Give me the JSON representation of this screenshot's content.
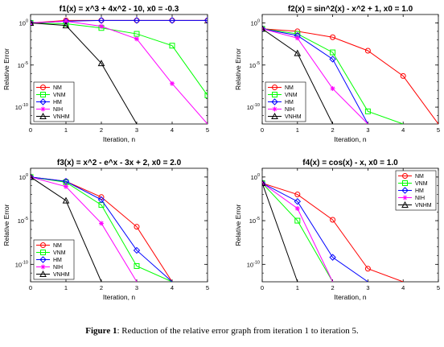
{
  "caption": {
    "label": "Figure 1",
    "text": ": Reduction of the relative error graph from iteration 1 to iteration 5."
  },
  "chart_data": [
    {
      "type": "line",
      "title": "f1(x) = x^3 + 4x^2 - 10,  x0 = -0.3",
      "xlabel": "Iteration, n",
      "ylabel": "Relative Error",
      "xlim": [
        0,
        5
      ],
      "ylim_exponent": [
        -12,
        1
      ],
      "y_scale": "log",
      "x_ticks": [
        0,
        1,
        2,
        3,
        4,
        5
      ],
      "y_ticks": [
        {
          "exp": 0,
          "label": "10",
          "sup": "0"
        },
        {
          "exp": -5,
          "label": "10",
          "sup": "-5"
        },
        {
          "exp": -10,
          "label": "10",
          "sup": "-10"
        }
      ],
      "legend": "bottom-left",
      "series": [
        {
          "name": "NM",
          "color": "#ff0000",
          "marker": "circle",
          "x": [
            0,
            1,
            2,
            3,
            4,
            5
          ],
          "log10_y": [
            0.0,
            0.3,
            0.3,
            0.3,
            0.3,
            0.3
          ]
        },
        {
          "name": "VNM",
          "color": "#00ff00",
          "marker": "square",
          "x": [
            0,
            1,
            2,
            3,
            4,
            5
          ],
          "log10_y": [
            0.0,
            -0.1,
            -0.6,
            -1.3,
            -2.7,
            -8.6
          ]
        },
        {
          "name": "HM",
          "color": "#0000ff",
          "marker": "diamond",
          "x": [
            0,
            1,
            2,
            3,
            4,
            5
          ],
          "log10_y": [
            0.0,
            0.2,
            0.3,
            0.3,
            0.3,
            0.3
          ]
        },
        {
          "name": "NIH",
          "color": "#ff00ff",
          "marker": "star",
          "x": [
            0,
            1,
            2,
            3,
            4,
            5
          ],
          "log10_y": [
            0.0,
            0.2,
            -0.4,
            -1.9,
            -7.2,
            -12
          ]
        },
        {
          "name": "VNHM",
          "color": "#000000",
          "marker": "triangle",
          "x": [
            0,
            1,
            2,
            3
          ],
          "log10_y": [
            0.0,
            -0.3,
            -4.8,
            -12
          ]
        }
      ]
    },
    {
      "type": "line",
      "title": "f2(x) = sin^2(x) - x^2 + 1,  x0 = 1.0",
      "xlabel": "Iteration, n",
      "ylabel": "Relative Error",
      "xlim": [
        0,
        5
      ],
      "ylim_exponent": [
        -12,
        1
      ],
      "y_scale": "log",
      "x_ticks": [
        0,
        1,
        2,
        3,
        4,
        5
      ],
      "y_ticks": [
        {
          "exp": 0,
          "label": "10",
          "sup": "0"
        },
        {
          "exp": -5,
          "label": "10",
          "sup": "-5"
        },
        {
          "exp": -10,
          "label": "10",
          "sup": "-10"
        }
      ],
      "legend": "bottom-left",
      "series": [
        {
          "name": "NM",
          "color": "#ff0000",
          "marker": "circle",
          "x": [
            0,
            1,
            2,
            3,
            4,
            5
          ],
          "log10_y": [
            -0.7,
            -1.0,
            -1.7,
            -3.3,
            -6.3,
            -12
          ]
        },
        {
          "name": "VNM",
          "color": "#00ff00",
          "marker": "square",
          "x": [
            0,
            1,
            2,
            3,
            4
          ],
          "log10_y": [
            -0.7,
            -1.3,
            -3.5,
            -10.5,
            -12
          ]
        },
        {
          "name": "HM",
          "color": "#0000ff",
          "marker": "diamond",
          "x": [
            0,
            1,
            2,
            3
          ],
          "log10_y": [
            -0.7,
            -1.5,
            -4.3,
            -12
          ]
        },
        {
          "name": "NIH",
          "color": "#ff00ff",
          "marker": "star",
          "x": [
            0,
            1,
            2,
            3
          ],
          "log10_y": [
            -0.7,
            -1.8,
            -7.8,
            -12
          ]
        },
        {
          "name": "VNHM",
          "color": "#000000",
          "marker": "triangle",
          "x": [
            0,
            1,
            2
          ],
          "log10_y": [
            -0.7,
            -3.6,
            -12
          ]
        }
      ]
    },
    {
      "type": "line",
      "title": "f3(x) = x^2 - e^x - 3x + 2,  x0 = 2.0",
      "xlabel": "Iteration, n",
      "ylabel": "Relative Error",
      "xlim": [
        0,
        5
      ],
      "ylim_exponent": [
        -12,
        1
      ],
      "y_scale": "log",
      "x_ticks": [
        0,
        1,
        2,
        3,
        4,
        5
      ],
      "y_ticks": [
        {
          "exp": 0,
          "label": "10",
          "sup": "0"
        },
        {
          "exp": -5,
          "label": "10",
          "sup": "-5"
        },
        {
          "exp": -10,
          "label": "10",
          "sup": "-10"
        }
      ],
      "legend": "bottom-left",
      "series": [
        {
          "name": "NM",
          "color": "#ff0000",
          "marker": "circle",
          "x": [
            0,
            1,
            2,
            3,
            4
          ],
          "log10_y": [
            0.0,
            -0.5,
            -2.3,
            -5.7,
            -12
          ]
        },
        {
          "name": "VNM",
          "color": "#00ff00",
          "marker": "square",
          "x": [
            0,
            1,
            2,
            3,
            4
          ],
          "log10_y": [
            0.0,
            -0.6,
            -3.2,
            -10.2,
            -12
          ]
        },
        {
          "name": "HM",
          "color": "#0000ff",
          "marker": "diamond",
          "x": [
            0,
            1,
            2,
            3,
            4
          ],
          "log10_y": [
            0.0,
            -0.5,
            -2.6,
            -8.4,
            -12
          ]
        },
        {
          "name": "NIH",
          "color": "#ff00ff",
          "marker": "star",
          "x": [
            0,
            1,
            2,
            3
          ],
          "log10_y": [
            0.0,
            -1.1,
            -5.3,
            -12
          ]
        },
        {
          "name": "VNHM",
          "color": "#000000",
          "marker": "triangle",
          "x": [
            0,
            1,
            2
          ],
          "log10_y": [
            0.0,
            -2.7,
            -12
          ]
        }
      ]
    },
    {
      "type": "line",
      "title": "f4(x) = cos(x) - x,  x0 = 1.0",
      "xlabel": "Iteration, n",
      "ylabel": "Relative Error",
      "xlim": [
        0,
        5
      ],
      "ylim_exponent": [
        -12,
        1
      ],
      "y_scale": "log",
      "x_ticks": [
        0,
        1,
        2,
        3,
        4,
        5
      ],
      "y_ticks": [
        {
          "exp": 0,
          "label": "10",
          "sup": "0"
        },
        {
          "exp": -5,
          "label": "10",
          "sup": "-5"
        },
        {
          "exp": -10,
          "label": "10",
          "sup": "-10"
        }
      ],
      "legend": "top-right",
      "series": [
        {
          "name": "NM",
          "color": "#ff0000",
          "marker": "circle",
          "x": [
            0,
            1,
            2,
            3,
            4
          ],
          "log10_y": [
            -0.7,
            -2.0,
            -4.9,
            -10.5,
            -12
          ]
        },
        {
          "name": "VNM",
          "color": "#00ff00",
          "marker": "square",
          "x": [
            0,
            1,
            2
          ],
          "log10_y": [
            -0.7,
            -5.0,
            -12
          ]
        },
        {
          "name": "HM",
          "color": "#0000ff",
          "marker": "diamond",
          "x": [
            0,
            1,
            2,
            3
          ],
          "log10_y": [
            -0.7,
            -2.8,
            -9.2,
            -12
          ]
        },
        {
          "name": "NIH",
          "color": "#ff00ff",
          "marker": "star",
          "x": [
            0,
            1,
            2
          ],
          "log10_y": [
            -0.7,
            -3.6,
            -12
          ]
        },
        {
          "name": "VNHM",
          "color": "#000000",
          "marker": "triangle",
          "x": [
            0,
            1
          ],
          "log10_y": [
            -0.7,
            -12
          ]
        }
      ]
    }
  ]
}
